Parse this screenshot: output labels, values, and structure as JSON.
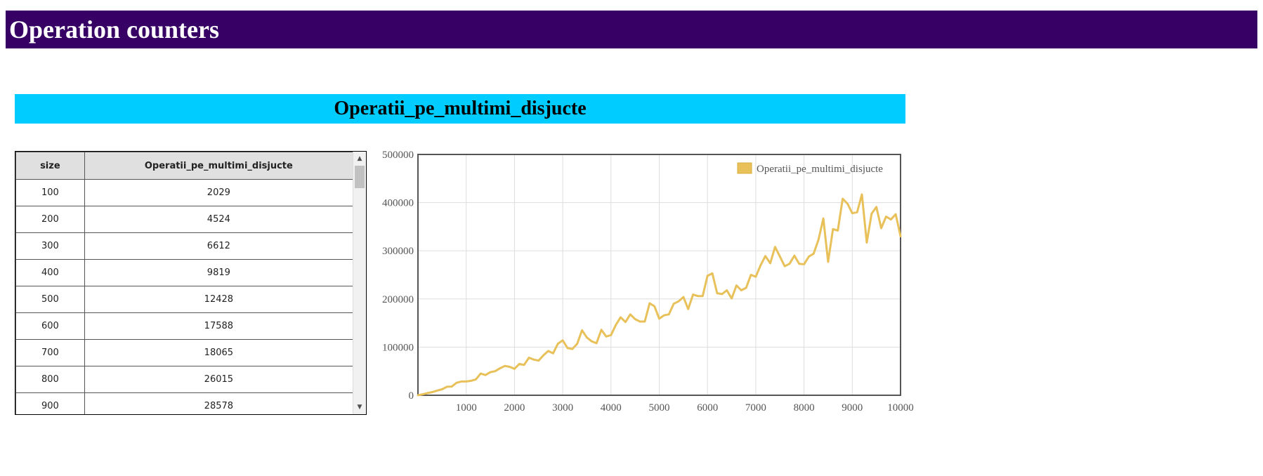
{
  "header": {
    "title": "Operation counters"
  },
  "section": {
    "title": "Operatii_pe_multimi_disjucte"
  },
  "table": {
    "columns": [
      "size",
      "Operatii_pe_multimi_disjucte"
    ],
    "rows": [
      [
        "100",
        "2029"
      ],
      [
        "200",
        "4524"
      ],
      [
        "300",
        "6612"
      ],
      [
        "400",
        "9819"
      ],
      [
        "500",
        "12428"
      ],
      [
        "600",
        "17588"
      ],
      [
        "700",
        "18065"
      ],
      [
        "800",
        "26015"
      ],
      [
        "900",
        "28578"
      ]
    ]
  },
  "scrollbar": {
    "up_icon": "arrow-up-icon",
    "down_icon": "arrow-down-icon"
  },
  "colors": {
    "header_bg": "#360065",
    "section_bg": "#00ccff",
    "series": "#e8c15a"
  },
  "chart_data": {
    "type": "line",
    "title": "",
    "xlabel": "",
    "ylabel": "",
    "xlim": [
      0,
      10000
    ],
    "ylim": [
      0,
      500000
    ],
    "x_ticks": [
      "1000",
      "2000",
      "3000",
      "4000",
      "5000",
      "6000",
      "7000",
      "8000",
      "9000",
      "10000"
    ],
    "y_ticks": [
      "0",
      "100000",
      "200000",
      "300000",
      "400000",
      "500000"
    ],
    "grid": true,
    "legend_position": "top-right",
    "series": [
      {
        "name": "Operatii_pe_multimi_disjucte",
        "color": "#e8c15a",
        "x": [
          100,
          200,
          300,
          400,
          500,
          600,
          700,
          800,
          900,
          1000,
          1100,
          1200,
          1300,
          1400,
          1500,
          1600,
          1700,
          1800,
          1900,
          2000,
          2100,
          2200,
          2300,
          2400,
          2500,
          2600,
          2700,
          2800,
          2900,
          3000,
          3100,
          3200,
          3300,
          3400,
          3500,
          3600,
          3700,
          3800,
          3900,
          4000,
          4100,
          4200,
          4300,
          4400,
          4500,
          4600,
          4700,
          4800,
          4900,
          5000,
          5100,
          5200,
          5300,
          5400,
          5500,
          5600,
          5700,
          5800,
          5900,
          6000,
          6100,
          6200,
          6300,
          6400,
          6500,
          6600,
          6700,
          6800,
          6900,
          7000,
          7100,
          7200,
          7300,
          7400,
          7500,
          7600,
          7700,
          7800,
          7900,
          8000,
          8100,
          8200,
          8300,
          8400,
          8500,
          8600,
          8700,
          8800,
          8900,
          9000,
          9100,
          9200,
          9300,
          9400,
          9500,
          9600,
          9700,
          9800,
          9900,
          10000
        ],
        "y": [
          2029,
          4524,
          6612,
          9819,
          12428,
          17588,
          18065,
          26015,
          28578,
          28500,
          30000,
          33000,
          45000,
          42000,
          48000,
          50000,
          56000,
          61000,
          59000,
          55000,
          65000,
          63000,
          78000,
          74000,
          72000,
          83000,
          92000,
          87000,
          107000,
          114000,
          98000,
          96000,
          107000,
          135000,
          120000,
          112000,
          108000,
          136000,
          122000,
          125000,
          146000,
          162000,
          152000,
          168000,
          158000,
          153000,
          153000,
          191000,
          185000,
          159000,
          166000,
          168000,
          190000,
          195000,
          204000,
          179000,
          209000,
          206000,
          206000,
          248000,
          253000,
          212000,
          210000,
          218000,
          201000,
          228000,
          218000,
          223000,
          250000,
          246000,
          270000,
          289000,
          274000,
          308000,
          288000,
          268000,
          273000,
          290000,
          273000,
          272000,
          288000,
          294000,
          323000,
          367000,
          277000,
          345000,
          342000,
          408000,
          398000,
          378000,
          380000,
          417000,
          317000,
          377000,
          391000,
          347000,
          371000,
          365000,
          376000,
          330000
        ]
      }
    ]
  }
}
